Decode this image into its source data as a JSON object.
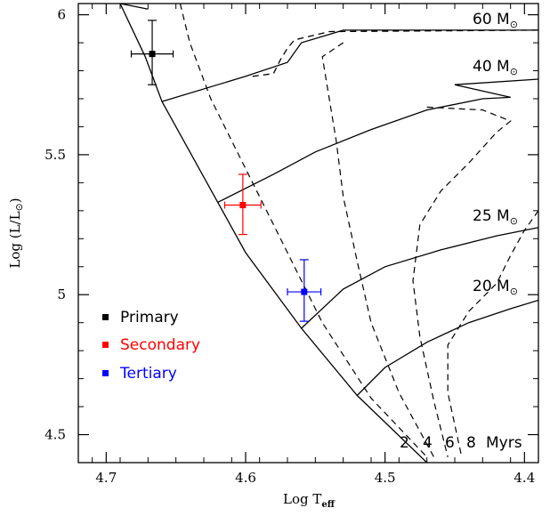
{
  "chart_data": {
    "type": "line",
    "title": "",
    "xlabel": {
      "main": "Log T",
      "sub": "eff"
    },
    "ylabel": {
      "main": "Log (L/L",
      "sym": "⊙",
      "close": ")"
    },
    "xlim": [
      4.72,
      4.39
    ],
    "ylim": [
      4.4,
      6.04
    ],
    "xticks": [
      4.7,
      4.6,
      4.5,
      4.4
    ],
    "xtick_labels": [
      "4.7",
      "4.6",
      "4.5",
      "4.4"
    ],
    "yticks": [
      4.5,
      5.0,
      5.5,
      6.0
    ],
    "ytick_labels": [
      "4.5",
      "5",
      "5.5",
      "6"
    ],
    "grid": false,
    "zams": [
      [
        4.69,
        6.04
      ],
      [
        4.672,
        5.85
      ],
      [
        4.66,
        5.69
      ],
      [
        4.62,
        5.33
      ],
      [
        4.6,
        5.15
      ],
      [
        4.56,
        4.88
      ],
      [
        4.52,
        4.64
      ],
      [
        4.47,
        4.4
      ]
    ],
    "tracks": [
      {
        "name": "60 M",
        "label_sym": "⊙",
        "points": [
          [
            4.66,
            5.69
          ],
          [
            4.6,
            5.78
          ],
          [
            4.57,
            5.83
          ],
          [
            4.56,
            5.9
          ],
          [
            4.53,
            5.945
          ],
          [
            4.39,
            5.945
          ]
        ]
      },
      {
        "name": "40 M",
        "label_sym": "⊙",
        "points": [
          [
            4.62,
            5.33
          ],
          [
            4.58,
            5.43
          ],
          [
            4.55,
            5.51
          ],
          [
            4.51,
            5.59
          ],
          [
            4.47,
            5.66
          ],
          [
            4.43,
            5.7
          ],
          [
            4.41,
            5.705
          ],
          [
            4.45,
            5.75
          ],
          [
            4.39,
            5.77
          ]
        ]
      },
      {
        "name": "25 M",
        "label_sym": "⊙",
        "points": [
          [
            4.56,
            4.88
          ],
          [
            4.53,
            5.02
          ],
          [
            4.5,
            5.1
          ],
          [
            4.46,
            5.16
          ],
          [
            4.42,
            5.21
          ],
          [
            4.39,
            5.24
          ]
        ]
      },
      {
        "name": "20 M",
        "label_sym": "⊙",
        "points": [
          [
            4.52,
            4.64
          ],
          [
            4.5,
            4.74
          ],
          [
            4.47,
            4.83
          ],
          [
            4.44,
            4.9
          ],
          [
            4.41,
            4.95
          ],
          [
            4.39,
            4.98
          ]
        ]
      }
    ],
    "top_tracks": [
      [
        [
          4.69,
          6.04
        ],
        [
          4.67,
          6.02
        ]
      ],
      [
        [
          4.595,
          5.78
        ],
        [
          4.58,
          5.79
        ],
        [
          4.575,
          5.84
        ],
        [
          4.57,
          5.88
        ],
        [
          4.565,
          5.91
        ],
        [
          4.54,
          5.94
        ],
        [
          4.39,
          5.945
        ]
      ]
    ],
    "isochrones": [
      {
        "label": "2",
        "points": [
          [
            4.647,
            6.04
          ],
          [
            4.64,
            5.9
          ],
          [
            4.625,
            5.7
          ],
          [
            4.61,
            5.55
          ],
          [
            4.59,
            5.35
          ],
          [
            4.57,
            5.15
          ],
          [
            4.545,
            4.9
          ],
          [
            4.51,
            4.63
          ],
          [
            4.47,
            4.42
          ]
        ]
      },
      {
        "label": "4",
        "points": [
          [
            4.53,
            5.9
          ],
          [
            4.545,
            5.85
          ],
          [
            4.54,
            5.7
          ],
          [
            4.535,
            5.55
          ],
          [
            4.53,
            5.35
          ],
          [
            4.52,
            5.12
          ],
          [
            4.51,
            4.9
          ],
          [
            4.49,
            4.65
          ],
          [
            4.465,
            4.42
          ]
        ]
      },
      {
        "label": "6",
        "points": [
          [
            4.47,
            5.67
          ],
          [
            4.43,
            5.66
          ],
          [
            4.41,
            5.62
          ],
          [
            4.42,
            5.58
          ],
          [
            4.44,
            5.47
          ],
          [
            4.46,
            5.37
          ],
          [
            4.475,
            5.25
          ],
          [
            4.48,
            5.05
          ],
          [
            4.475,
            4.85
          ],
          [
            4.465,
            4.62
          ],
          [
            4.455,
            4.42
          ]
        ]
      },
      {
        "label": "8",
        "points": [
          [
            4.39,
            5.3
          ],
          [
            4.4,
            5.23
          ],
          [
            4.41,
            5.14
          ],
          [
            4.42,
            5.04
          ],
          [
            4.44,
            4.94
          ],
          [
            4.455,
            4.82
          ],
          [
            4.455,
            4.65
          ],
          [
            4.445,
            4.42
          ]
        ]
      }
    ],
    "stars": [
      {
        "name": "Primary",
        "color": "#000000",
        "x": 4.667,
        "y": 5.86,
        "xerr": 0.015,
        "yerr_up": 0.12,
        "yerr_down": 0.11
      },
      {
        "name": "Secondary",
        "color": "#ff0000",
        "x": 4.602,
        "y": 5.32,
        "xerr": 0.013,
        "yerr_up": 0.11,
        "yerr_down": 0.105
      },
      {
        "name": "Tertiary",
        "color": "#0000ff",
        "x": 4.558,
        "y": 5.01,
        "xerr": 0.012,
        "yerr_up": 0.115,
        "yerr_down": 0.105
      }
    ],
    "age_label": {
      "numbers": [
        "2",
        "4",
        "6",
        "8"
      ],
      "unit": "Myrs"
    },
    "legend_position": "bottom-left"
  }
}
